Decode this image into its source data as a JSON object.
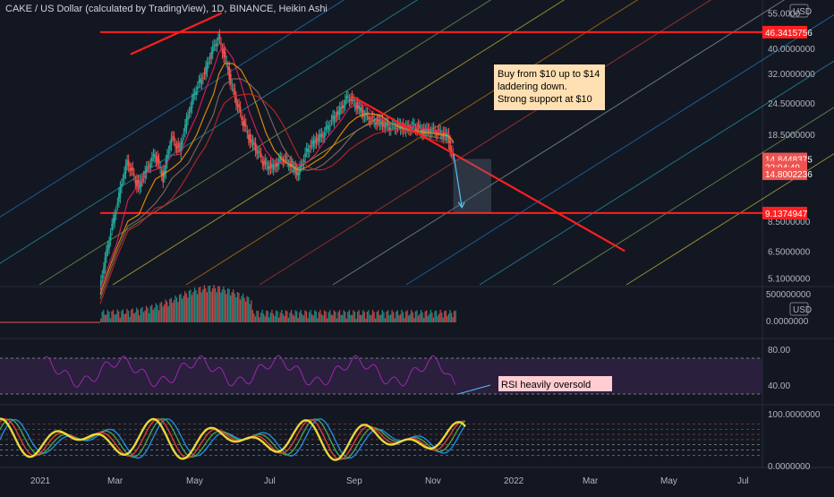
{
  "header": {
    "title": "CAKE / US Dollar (calculated by TradingView), 1D, BINANCE, Heikin Ashi"
  },
  "colors": {
    "background": "#131722",
    "up": "#26a69a",
    "down": "#ef5350",
    "trend_red": "#ff1f1f",
    "text": "#b2b5be",
    "rsi_line": "#9c27b0",
    "rsi_band": "#2a1f3d",
    "annotation_bg": "#ffe0b2",
    "annotation_bg2": "#ffcdd2"
  },
  "chart_data": [
    {
      "type": "line",
      "name": "price",
      "scale": "log",
      "currency_label": "USD",
      "y_ticks": [
        "55.0000",
        "40.0000000",
        "32.0000000",
        "24.5000000",
        "18.5000000",
        "8.5000000",
        "6.5000000",
        "5.1000000"
      ],
      "price_tags": [
        {
          "label": "46.3415756",
          "value": 46.3415756,
          "bg": "#ff1f1f"
        },
        {
          "label": "14.8448375",
          "value": 14.8448375,
          "bg": "#ef5350"
        },
        {
          "label": "22:04:49",
          "value": 13.8,
          "bg": "#ef5350"
        },
        {
          "label": "14.8002236",
          "value": 13.0,
          "bg": "#ef5350"
        },
        {
          "label": "9.1374947",
          "value": 9.1374947,
          "bg": "#ff1f1f"
        }
      ],
      "x_ticks": [
        "2021",
        "Mar",
        "May",
        "Jul",
        "Sep",
        "Nov",
        "2022",
        "Mar",
        "May",
        "Jul"
      ],
      "annotations": [
        {
          "lines": [
            "Buy from $10 up to $14",
            "laddering down.",
            "Strong support at $10"
          ]
        }
      ],
      "horizontal_levels": [
        46.3415756,
        9.1374947
      ],
      "close_series": [
        {
          "d": 0,
          "v": 4.6
        },
        {
          "d": 6,
          "v": 6.8
        },
        {
          "d": 12,
          "v": 9.5
        },
        {
          "d": 20,
          "v": 14.5
        },
        {
          "d": 28,
          "v": 11.5
        },
        {
          "d": 34,
          "v": 13.5
        },
        {
          "d": 40,
          "v": 15.5
        },
        {
          "d": 46,
          "v": 12.5
        },
        {
          "d": 52,
          "v": 18.0
        },
        {
          "d": 58,
          "v": 16.0
        },
        {
          "d": 64,
          "v": 22.0
        },
        {
          "d": 70,
          "v": 28.0
        },
        {
          "d": 76,
          "v": 32.0
        },
        {
          "d": 82,
          "v": 40.0
        },
        {
          "d": 86,
          "v": 44.0
        },
        {
          "d": 90,
          "v": 38.0
        },
        {
          "d": 96,
          "v": 28.0
        },
        {
          "d": 102,
          "v": 22.0
        },
        {
          "d": 108,
          "v": 18.0
        },
        {
          "d": 114,
          "v": 16.0
        },
        {
          "d": 120,
          "v": 14.0
        },
        {
          "d": 126,
          "v": 13.8
        },
        {
          "d": 132,
          "v": 15.0
        },
        {
          "d": 138,
          "v": 14.2
        },
        {
          "d": 144,
          "v": 13.0
        },
        {
          "d": 150,
          "v": 16.0
        },
        {
          "d": 156,
          "v": 17.5
        },
        {
          "d": 162,
          "v": 18.5
        },
        {
          "d": 168,
          "v": 21.0
        },
        {
          "d": 174,
          "v": 23.0
        },
        {
          "d": 180,
          "v": 26.0
        },
        {
          "d": 186,
          "v": 24.0
        },
        {
          "d": 192,
          "v": 22.0
        },
        {
          "d": 198,
          "v": 21.0
        },
        {
          "d": 204,
          "v": 20.5
        },
        {
          "d": 210,
          "v": 19.8
        },
        {
          "d": 216,
          "v": 20.0
        },
        {
          "d": 222,
          "v": 19.5
        },
        {
          "d": 228,
          "v": 20.0
        },
        {
          "d": 234,
          "v": 19.0
        },
        {
          "d": 240,
          "v": 19.2
        },
        {
          "d": 246,
          "v": 18.8
        },
        {
          "d": 252,
          "v": 18.2
        },
        {
          "d": 256,
          "v": 14.8
        }
      ],
      "projection_box": {
        "d_from": 256,
        "d_to": 283,
        "v_low": 9.2,
        "v_high": 14.8
      },
      "trendlines": [
        {
          "d1": 22,
          "v1": 38.0,
          "d2": 88,
          "v2": 55.0
        },
        {
          "d1": 183,
          "v1": 26.0,
          "d2": 380,
          "v2": 6.5
        }
      ]
    },
    {
      "type": "bar",
      "name": "volume",
      "y_ticks": [
        "500000000",
        "0.0000000"
      ],
      "currency_label": "USD"
    },
    {
      "type": "line",
      "name": "RSI",
      "y_ticks": [
        "80.00",
        "40.00"
      ],
      "bands": [
        70,
        30
      ],
      "annotations": [
        {
          "lines": [
            "RSI heavily oversold"
          ]
        }
      ]
    },
    {
      "type": "line",
      "name": "stochastic",
      "y_ticks": [
        "100.0000000",
        "0.0000000"
      ]
    }
  ]
}
